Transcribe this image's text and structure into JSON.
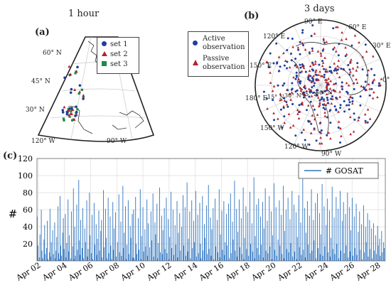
{
  "panel_a": {
    "label": "(a)",
    "title": "1 hour",
    "lat_labels": [
      "60° N",
      "45° N",
      "30° N"
    ],
    "lon_labels": [
      "120° W",
      "90° W"
    ],
    "legend": [
      {
        "label": "set 1",
        "color": "#1f3f9e",
        "marker": "circle"
      },
      {
        "label": "set 2",
        "color": "#b3242b",
        "marker": "triangle"
      },
      {
        "label": "set 3",
        "color": "#1d8a4a",
        "marker": "square"
      }
    ]
  },
  "panel_b": {
    "label": "(b)",
    "title": "3 days",
    "legend": [
      {
        "label": "Active observation",
        "lines": [
          "Active",
          "observation"
        ],
        "color": "#1f3f9e",
        "marker": "circle"
      },
      {
        "label": "Passive observation",
        "lines": [
          "Passive",
          "observation"
        ],
        "color": "#b3242b",
        "marker": "triangle"
      }
    ],
    "lon_labels": [
      "90° W",
      "120° W",
      "150° W",
      "180° E",
      "150° E",
      "120° E",
      "90° E",
      "60° E",
      "30° E",
      "0°"
    ],
    "lat_labels": [
      "15° N",
      "30° N",
      "45° N",
      "60° N"
    ]
  },
  "panel_c": {
    "label": "(c)"
  },
  "chart_data": {
    "type": "bar",
    "title": "",
    "xlabel": "",
    "ylabel": "#",
    "ylim": [
      0,
      120
    ],
    "yticks": [
      20,
      40,
      60,
      80,
      100,
      120
    ],
    "grid": true,
    "legend_position": "top-right",
    "series_color": "#2e74c0",
    "x_tick_labels": [
      "Apr 02",
      "Apr 04",
      "Apr 06",
      "Apr 08",
      "Apr 10",
      "Apr 12",
      "Apr 14",
      "Apr 16",
      "Apr 18",
      "Apr 20",
      "Apr 22",
      "Apr 24",
      "Apr 26",
      "Apr 28"
    ],
    "series": [
      {
        "name": "# GOSAT",
        "resolution": "hourly",
        "values": [
          52,
          18,
          0,
          4,
          31,
          0,
          60,
          12,
          3,
          0,
          25,
          42,
          8,
          0,
          15,
          47,
          2,
          0,
          10,
          61,
          5,
          22,
          0,
          36,
          8,
          0,
          45,
          3,
          12,
          28,
          0,
          64,
          9,
          2,
          76,
          18,
          6,
          0,
          33,
          50,
          14,
          0,
          55,
          4,
          21,
          0,
          72,
          11,
          30,
          0,
          3,
          58,
          0,
          17,
          85,
          2,
          40,
          6,
          0,
          66,
          13,
          0,
          95,
          24,
          7,
          48,
          0,
          15,
          62,
          3,
          0,
          38,
          22,
          0,
          71,
          5,
          14,
          0,
          80,
          30,
          0,
          9,
          54,
          2,
          0,
          68,
          19,
          0,
          43,
          7,
          26,
          0,
          59,
          12,
          0,
          35,
          48,
          4,
          0,
          83,
          16,
          0,
          61,
          27,
          3,
          0,
          74,
          9,
          0,
          52,
          18,
          2,
          0,
          69,
          13,
          38,
          0,
          57,
          5,
          0,
          22,
          0,
          78,
          10,
          0,
          46,
          6,
          0,
          88,
          15,
          33,
          0,
          64,
          2,
          19,
          0,
          71,
          8,
          0,
          41,
          27,
          0,
          55,
          4,
          60,
          3,
          0,
          75,
          20,
          8,
          0,
          50,
          13,
          0,
          84,
          2,
          29,
          0,
          63,
          11,
          0,
          37,
          17,
          0,
          72,
          6,
          44,
          0,
          16,
          0,
          58,
          24,
          0,
          79,
          5,
          0,
          45,
          31,
          0,
          67,
          3,
          21,
          0,
          86,
          10,
          0,
          53,
          8,
          36,
          0,
          62,
          14,
          0,
          74,
          9,
          0,
          49,
          2,
          28,
          0,
          81,
          15,
          0,
          60,
          7,
          0,
          42,
          19,
          0,
          70,
          4,
          33,
          0,
          56,
          12,
          0,
          40,
          0,
          77,
          18,
          0,
          63,
          6,
          0,
          92,
          11,
          26,
          0,
          58,
          3,
          0,
          71,
          15,
          0,
          47,
          22,
          0,
          82,
          5,
          0,
          54,
          9,
          0,
          68,
          20,
          3,
          0,
          76,
          12,
          0,
          43,
          27,
          0,
          65,
          8,
          0,
          89,
          14,
          0,
          51,
          6,
          37,
          0,
          62,
          2,
          0,
          73,
          17,
          0,
          48,
          10,
          0,
          84,
          4,
          31,
          0,
          59,
          13,
          0,
          70,
          7,
          22,
          0,
          55,
          18,
          0,
          67,
          3,
          0,
          79,
          9,
          0,
          46,
          25,
          0,
          94,
          12,
          0,
          61,
          5,
          34,
          0,
          72,
          16,
          0,
          50,
          8,
          0,
          86,
          2,
          27,
          0,
          64,
          14,
          0,
          57,
          6,
          0,
          81,
          20,
          0,
          44,
          11,
          0,
          98,
          3,
          29,
          0,
          66,
          15,
          0,
          73,
          7,
          0,
          52,
          19,
          0,
          69,
          4,
          38,
          0,
          85,
          12,
          0,
          47,
          9,
          0,
          76,
          17,
          0,
          58,
          2,
          30,
          0,
          91,
          13,
          0,
          63,
          6,
          0,
          25,
          0,
          71,
          18,
          0,
          54,
          8,
          0,
          88,
          3,
          35,
          0,
          60,
          14,
          0,
          74,
          10,
          0,
          49,
          21,
          0,
          82,
          5,
          0,
          66,
          11,
          0,
          57,
          2,
          28,
          0,
          77,
          16,
          0,
          45,
          7,
          0,
          96,
          13,
          0,
          62,
          4,
          33,
          0,
          70,
          19,
          0,
          53,
          9,
          0,
          84,
          12,
          0,
          48,
          24,
          0,
          68,
          3,
          0,
          79,
          15,
          0,
          56,
          8,
          31,
          0,
          90,
          6,
          0,
          64,
          17,
          0,
          42,
          0,
          73,
          10,
          0,
          59,
          5,
          27,
          0,
          87,
          14,
          0,
          51,
          8,
          0,
          75,
          20,
          0,
          61,
          3,
          0,
          82,
          12,
          0,
          47,
          0,
          69,
          9,
          0,
          55,
          18,
          0,
          80,
          4,
          0,
          63,
          11,
          36,
          0,
          74,
          6,
          0,
          52,
          15,
          0,
          67,
          7,
          0,
          34,
          0,
          58,
          13,
          0,
          43,
          2,
          0,
          65,
          10,
          0,
          40,
          22,
          0,
          56,
          5,
          0,
          48,
          14,
          0,
          38,
          3,
          0,
          44,
          12,
          0,
          30,
          8,
          0,
          41,
          18,
          0,
          26,
          6,
          0,
          35,
          10,
          0,
          22,
          15,
          0
        ]
      }
    ]
  }
}
